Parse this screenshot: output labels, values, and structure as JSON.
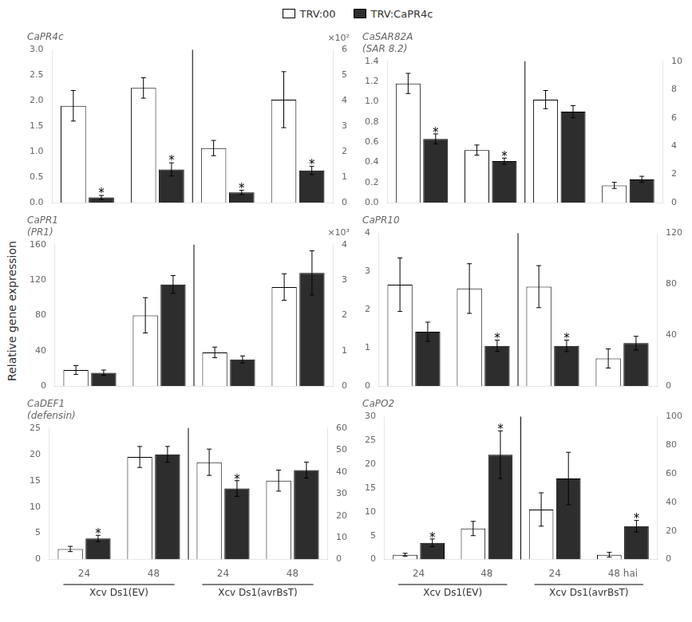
{
  "ylabel": "Relative gene expression",
  "legend": "top",
  "chart_data": [
    {
      "type": "bar",
      "title": "CaPR4c",
      "categories": [
        null,
        null,
        null,
        null
      ],
      "tick_labels": "y",
      "grid": false,
      "ylim": [
        0,
        3.0
      ],
      "yticks": [
        {
          "value": 0,
          "label": "0.0"
        },
        0.5,
        {
          "value": 1,
          "label": "1.0"
        },
        1.5,
        {
          "value": 2,
          "label": "2.0"
        },
        2.5,
        {
          "value": 3,
          "label": "3.0"
        }
      ],
      "y2lim": [
        0,
        6
      ],
      "y2ticks": [
        0,
        1,
        2,
        3,
        4,
        5,
        6
      ],
      "y2label": "×10²",
      "series": [
        {
          "name": "TRV:00",
          "color": "white",
          "values": [
            1.9,
            2.25,
            1.07,
            2.02
          ],
          "errors": [
            0.3,
            0.2,
            0.15,
            0.55
          ]
        },
        {
          "name": "TRV:CaPR4c",
          "color": "#2d2d2d",
          "values": [
            0.1,
            0.65,
            0.2,
            0.63
          ],
          "errors": [
            0.04,
            0.13,
            0.04,
            0.08
          ]
        }
      ],
      "annotations": [
        {
          "text": "*",
          "series": "TRV:CaPR4c",
          "category": 0
        },
        {
          "text": "*",
          "series": "TRV:CaPR4c",
          "category": 1
        },
        {
          "text": "*",
          "series": "TRV:CaPR4c",
          "category": 2
        },
        {
          "text": "*",
          "series": "TRV:CaPR4c",
          "category": 3
        }
      ]
    },
    {
      "type": "bar",
      "title": "CaSAR82A\n(SAR 8.2)",
      "categories": [
        null,
        null,
        null,
        null
      ],
      "tick_labels": "y",
      "grid": false,
      "ylim": [
        0,
        1.4
      ],
      "yticks": [
        {
          "value": 0,
          "label": "0.0"
        },
        0.2,
        0.4,
        0.6,
        0.8,
        {
          "value": 1,
          "label": "1.0"
        },
        1.2,
        1.4
      ],
      "y2lim": [
        0,
        10
      ],
      "y2ticks": [
        0,
        2,
        4,
        6,
        8,
        10
      ],
      "series": [
        {
          "name": "TRV:00",
          "color": "white",
          "values": [
            1.18,
            0.52,
            1.02,
            0.17
          ],
          "errors": [
            0.1,
            0.05,
            0.09,
            0.03
          ]
        },
        {
          "name": "TRV:CaPR4c",
          "color": "#2d2d2d",
          "values": [
            0.63,
            0.41,
            0.9,
            0.23
          ],
          "errors": [
            0.05,
            0.03,
            0.06,
            0.03
          ]
        }
      ],
      "annotations": [
        {
          "text": "*",
          "series": "TRV:CaPR4c",
          "category": 0
        },
        {
          "text": "*",
          "series": "TRV:CaPR4c",
          "category": 1
        }
      ]
    },
    {
      "type": "bar",
      "title": "CaPR1\n(PR1)",
      "categories": [
        null,
        null,
        null,
        null
      ],
      "tick_labels": "y",
      "grid": false,
      "ylim": [
        0,
        160
      ],
      "yticks": [
        0,
        40,
        80,
        120,
        160
      ],
      "y2lim": [
        0,
        4
      ],
      "y2ticks": [
        0,
        1,
        2,
        3,
        4
      ],
      "y2label": "×10³",
      "series": [
        {
          "name": "TRV:00",
          "color": "white",
          "values": [
            18,
            80,
            38,
            112
          ],
          "errors": [
            5,
            20,
            6,
            15
          ]
        },
        {
          "name": "TRV:CaPR4c",
          "color": "#2d2d2d",
          "values": [
            15,
            115,
            30,
            128
          ],
          "errors": [
            3,
            10,
            4,
            25
          ]
        }
      ]
    },
    {
      "type": "bar",
      "title": "CaPR10",
      "categories": [
        null,
        null,
        null,
        null
      ],
      "tick_labels": "y",
      "grid": false,
      "ylim": [
        0,
        4
      ],
      "yticks": [
        0,
        1,
        2,
        3,
        4
      ],
      "y2lim": [
        0,
        120
      ],
      "y2ticks": [
        0,
        40,
        80,
        120
      ],
      "series": [
        {
          "name": "TRV:00",
          "color": "white",
          "values": [
            2.65,
            2.55,
            2.6,
            0.72
          ],
          "errors": [
            0.7,
            0.65,
            0.55,
            0.25
          ]
        },
        {
          "name": "TRV:CaPR4c",
          "color": "#2d2d2d",
          "values": [
            1.42,
            1.05,
            1.05,
            1.12
          ],
          "errors": [
            0.25,
            0.15,
            0.15,
            0.18
          ]
        }
      ],
      "annotations": [
        {
          "text": "*",
          "series": "TRV:CaPR4c",
          "category": 1
        },
        {
          "text": "*",
          "series": "TRV:CaPR4c",
          "category": 2
        }
      ]
    },
    {
      "type": "bar",
      "title": "CaDEF1\n(defensin)",
      "categories": [
        "24",
        "48",
        "24",
        "48"
      ],
      "grid": false,
      "ylim": [
        0,
        25
      ],
      "yticks": [
        0,
        5,
        10,
        15,
        20,
        25
      ],
      "y2lim": [
        0,
        60
      ],
      "y2ticks": [
        0,
        10,
        20,
        30,
        40,
        50,
        60
      ],
      "series": [
        {
          "name": "TRV:00",
          "color": "white",
          "values": [
            2.0,
            19.5,
            18.5,
            15.0
          ],
          "errors": [
            0.5,
            2.0,
            2.5,
            2.0
          ]
        },
        {
          "name": "TRV:CaPR4c",
          "color": "#2d2d2d",
          "values": [
            4.0,
            20.0,
            13.5,
            17.0
          ],
          "errors": [
            0.6,
            1.5,
            1.5,
            1.5
          ]
        }
      ],
      "annotations": [
        {
          "text": "*",
          "series": "TRV:CaPR4c",
          "category": 0
        },
        {
          "text": "*",
          "series": "TRV:CaPR4c",
          "category": 2
        },
        {
          "text": "Xcv Ds1(EV)",
          "span": [
            0,
            1
          ]
        },
        {
          "text": "Xcv Ds1(avrBsT)",
          "span": [
            2,
            3
          ]
        }
      ]
    },
    {
      "type": "bar",
      "title": "CaPO2",
      "categories": [
        "24",
        "48",
        "24",
        "48 hai"
      ],
      "grid": false,
      "ylim": [
        0,
        30
      ],
      "yticks": [
        0,
        5,
        10,
        15,
        20,
        25,
        30
      ],
      "y2lim": [
        0,
        100
      ],
      "y2ticks": [
        0,
        20,
        40,
        60,
        80,
        100
      ],
      "series": [
        {
          "name": "TRV:00",
          "color": "white",
          "values": [
            1.0,
            6.5,
            10.5,
            1.0
          ],
          "errors": [
            0.3,
            1.5,
            3.5,
            0.5
          ]
        },
        {
          "name": "TRV:CaPR4c",
          "color": "#2d2d2d",
          "values": [
            3.5,
            22.0,
            17.0,
            7.0
          ],
          "errors": [
            0.8,
            5.0,
            5.5,
            1.2
          ]
        }
      ],
      "annotations": [
        {
          "text": "*",
          "series": "TRV:CaPR4c",
          "category": 0
        },
        {
          "text": "*",
          "series": "TRV:CaPR4c",
          "category": 1
        },
        {
          "text": "*",
          "series": "TRV:CaPR4c",
          "category": 3
        },
        {
          "text": "Xcv Ds1(EV)",
          "span": [
            0,
            1
          ]
        },
        {
          "text": "Xcv Ds1(avrBsT)",
          "span": [
            2,
            3
          ]
        }
      ]
    }
  ]
}
